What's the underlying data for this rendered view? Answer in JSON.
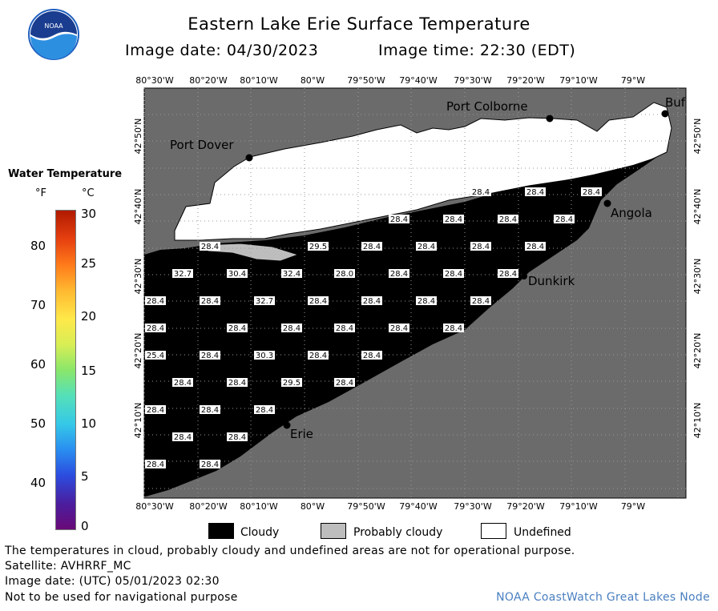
{
  "header": {
    "title": "Eastern Lake Erie Surface Temperature",
    "image_date_label": "Image date: 04/30/2023",
    "image_time_label": "Image time: 22:30 (EDT)",
    "logo_text": "NOAA"
  },
  "colors": {
    "land": "#6b6b6b",
    "cloud": "#000000",
    "undefined": "#ffffff",
    "probably_cloudy": "#bdbdbd",
    "credit": "#4a7fc0"
  },
  "map": {
    "lon_labels": [
      "80°30'W",
      "80°20'W",
      "80°10'W",
      "80°W",
      "79°50'W",
      "79°40'W",
      "79°30'W",
      "79°20'W",
      "79°10'W",
      "79°W"
    ],
    "lat_labels": [
      "42°50'N",
      "42°40'N",
      "42°30'N",
      "42°20'N",
      "42°10'N"
    ],
    "cities": [
      {
        "name": "Port Dover"
      },
      {
        "name": "Port Colborne"
      },
      {
        "name": "Buf"
      },
      {
        "name": "Angola"
      },
      {
        "name": "Dunkirk"
      },
      {
        "name": "Erie"
      }
    ],
    "temp_labels": [
      "28.4",
      "28.4",
      "28.4",
      "28.4",
      "28.4",
      "28.4",
      "28.4",
      "28.4",
      "29.5",
      "28.4",
      "28.4",
      "28.4",
      "28.4",
      "32.7",
      "30.4",
      "32.4",
      "28.0",
      "28.4",
      "28.4",
      "28.4",
      "28.4",
      "28.4",
      "32.7",
      "28.4",
      "28.4",
      "28.4",
      "28.4",
      "28.4",
      "28.4",
      "28.4",
      "28.4",
      "28.4",
      "28.4",
      "25.4",
      "28.4",
      "30.3",
      "28.4",
      "28.4",
      "28.4",
      "28.4",
      "29.5",
      "28.4",
      "28.4",
      "28.4",
      "28.4",
      "28.4",
      "28.4",
      "28.4",
      "28.4"
    ]
  },
  "legend": {
    "title": "Water Temperature",
    "unit_f": "°F",
    "unit_c": "°C",
    "f_ticks": [
      "80",
      "70",
      "60",
      "50",
      "40"
    ],
    "c_ticks": [
      "30",
      "25",
      "20",
      "15",
      "10",
      "5",
      "0"
    ],
    "cloudy": "Cloudy",
    "probably_cloudy": "Probably cloudy",
    "undefined": "Undefined"
  },
  "footer": {
    "line1": "The temperatures in cloud, probably cloudy and undefined areas are not for operational purpose.",
    "line2": "Satellite: AVHRRF_MC",
    "line3": "Image date: (UTC) 05/01/2023  02:30",
    "line4": "Not to be used for navigational purpose",
    "credit": "NOAA CoastWatch Great Lakes Node"
  }
}
